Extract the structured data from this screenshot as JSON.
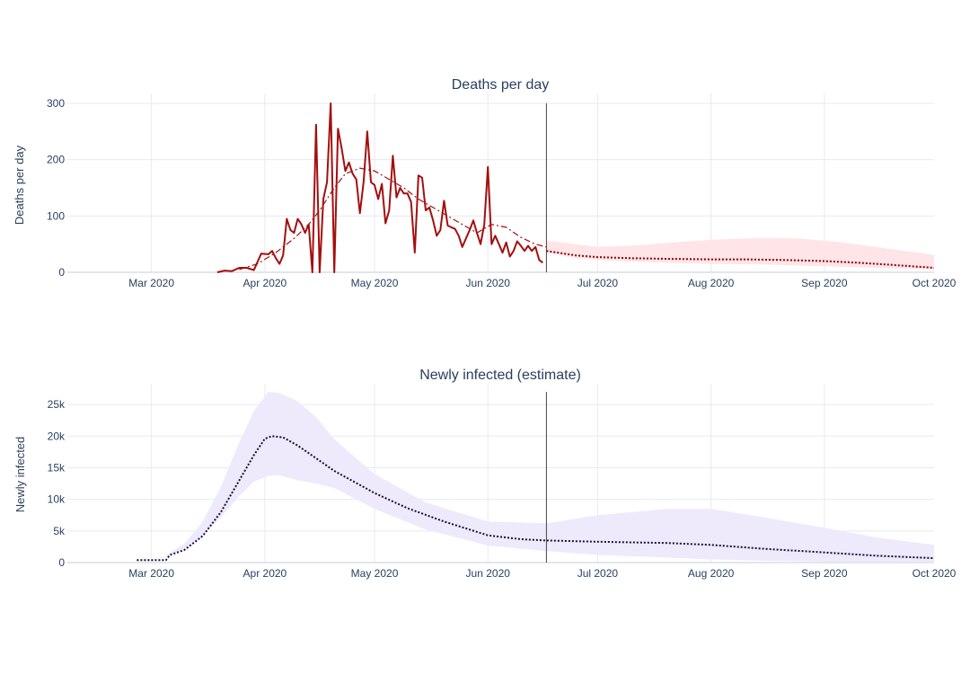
{
  "colors": {
    "deaths_line": "#a30f0f",
    "deaths_trend": "#a30f0f",
    "deaths_band": "#ffe4e8",
    "deaths_forecast": "#8b0000",
    "infected_band": "#eeeafc",
    "infected_line": "#1a0c3a",
    "grid": "#e6eaf0",
    "axis_text": "#2a3f5f",
    "divider": "#444444"
  },
  "chart_data": [
    {
      "type": "line",
      "title": "Deaths per day",
      "xlabel": "",
      "ylabel": "Deaths per day",
      "xlim": [
        "2020-02-07",
        "2020-10-01"
      ],
      "ylim": [
        0,
        300
      ],
      "y_ticks": [
        0,
        100,
        200,
        300
      ],
      "y_tick_labels": [
        "0",
        "100",
        "200",
        "300"
      ],
      "x_ticks": [
        "2020-03-01",
        "2020-04-01",
        "2020-05-01",
        "2020-06-01",
        "2020-07-01",
        "2020-08-01",
        "2020-09-01",
        "2020-10-01"
      ],
      "x_tick_labels": [
        "Mar 2020",
        "Apr 2020",
        "May 2020",
        "Jun 2020",
        "Jul 2020",
        "Aug 2020",
        "Sep 2020",
        "Oct 2020"
      ],
      "grid": true,
      "divider_date": "2020-06-17",
      "band": {
        "x": [
          "2020-06-17",
          "2020-06-25",
          "2020-07-01",
          "2020-07-10",
          "2020-07-20",
          "2020-08-01",
          "2020-08-15",
          "2020-08-25",
          "2020-09-05",
          "2020-09-15",
          "2020-09-25",
          "2020-10-01"
        ],
        "upper": [
          56,
          50,
          45,
          47,
          52,
          58,
          61,
          60,
          54,
          45,
          36,
          31
        ],
        "lower": [
          35,
          25,
          22,
          19,
          17,
          15,
          14,
          12,
          10,
          8,
          6,
          5
        ]
      },
      "series": [
        {
          "x": [
            "2020-03-19",
            "2020-03-21",
            "2020-03-23",
            "2020-03-25",
            "2020-03-27",
            "2020-03-29",
            "2020-03-31",
            "2020-04-02",
            "2020-04-03",
            "2020-04-04",
            "2020-04-05",
            "2020-04-06",
            "2020-04-07",
            "2020-04-08",
            "2020-04-09",
            "2020-04-10",
            "2020-04-11",
            "2020-04-12",
            "2020-04-13",
            "2020-04-14",
            "2020-04-15",
            "2020-04-16",
            "2020-04-17",
            "2020-04-18",
            "2020-04-19",
            "2020-04-20",
            "2020-04-21",
            "2020-04-22",
            "2020-04-23",
            "2020-04-24",
            "2020-04-25",
            "2020-04-26",
            "2020-04-27",
            "2020-04-28",
            "2020-04-29",
            "2020-04-30",
            "2020-05-01",
            "2020-05-02",
            "2020-05-03",
            "2020-05-04",
            "2020-05-05",
            "2020-05-06",
            "2020-05-07",
            "2020-05-08",
            "2020-05-09",
            "2020-05-10",
            "2020-05-11",
            "2020-05-12",
            "2020-05-13",
            "2020-05-14",
            "2020-05-15",
            "2020-05-16",
            "2020-05-17",
            "2020-05-18",
            "2020-05-19",
            "2020-05-20",
            "2020-05-21",
            "2020-05-22",
            "2020-05-23",
            "2020-05-24",
            "2020-05-25",
            "2020-05-26",
            "2020-05-27",
            "2020-05-28",
            "2020-05-29",
            "2020-05-30",
            "2020-05-31",
            "2020-06-01",
            "2020-06-02",
            "2020-06-03",
            "2020-06-04",
            "2020-06-05",
            "2020-06-06",
            "2020-06-07",
            "2020-06-08",
            "2020-06-09",
            "2020-06-10",
            "2020-06-11",
            "2020-06-12",
            "2020-06-13",
            "2020-06-14",
            "2020-06-15",
            "2020-06-16"
          ],
          "y": [
            0,
            3,
            2,
            8,
            8,
            4,
            33,
            32,
            38,
            25,
            15,
            30,
            95,
            75,
            70,
            95,
            85,
            70,
            85,
            0,
            262,
            0,
            130,
            160,
            300,
            0,
            255,
            220,
            180,
            195,
            175,
            165,
            105,
            160,
            250,
            160,
            155,
            130,
            157,
            87,
            110,
            207,
            133,
            150,
            140,
            140,
            125,
            35,
            172,
            168,
            110,
            115,
            92,
            65,
            75,
            127,
            83,
            80,
            77,
            65,
            45,
            60,
            75,
            92,
            70,
            50,
            85,
            187,
            50,
            65,
            50,
            35,
            53,
            28,
            38,
            55,
            47,
            38,
            47,
            38,
            45,
            22,
            17
          ]
        },
        {
          "x": [
            "2020-03-25",
            "2020-03-30",
            "2020-04-04",
            "2020-04-09",
            "2020-04-13",
            "2020-04-16",
            "2020-04-20",
            "2020-04-23",
            "2020-04-27",
            "2020-05-01",
            "2020-05-05",
            "2020-05-09",
            "2020-05-13",
            "2020-05-17",
            "2020-05-21",
            "2020-05-25",
            "2020-05-29",
            "2020-06-02",
            "2020-06-06",
            "2020-06-10",
            "2020-06-14",
            "2020-06-17"
          ],
          "y": [
            5,
            15,
            35,
            60,
            85,
            110,
            150,
            175,
            185,
            180,
            165,
            150,
            130,
            115,
            100,
            85,
            70,
            85,
            80,
            62,
            50,
            45
          ]
        },
        {
          "x": [
            "2020-06-17",
            "2020-06-25",
            "2020-07-01",
            "2020-07-10",
            "2020-07-20",
            "2020-08-01",
            "2020-08-10",
            "2020-08-20",
            "2020-09-01",
            "2020-09-10",
            "2020-09-20",
            "2020-10-01"
          ],
          "y": [
            38,
            30,
            27,
            25,
            24,
            23,
            23,
            22,
            20,
            17,
            13,
            8
          ]
        }
      ]
    },
    {
      "type": "line",
      "title": "Newly infected (estimate)",
      "xlabel": "",
      "ylabel": "Newly infected",
      "xlim": [
        "2020-02-07",
        "2020-10-01"
      ],
      "ylim": [
        0,
        27000
      ],
      "y_ticks": [
        0,
        5000,
        10000,
        15000,
        20000,
        25000
      ],
      "y_tick_labels": [
        "0",
        "5k",
        "10k",
        "15k",
        "20k",
        "25k"
      ],
      "x_ticks": [
        "2020-03-01",
        "2020-04-01",
        "2020-05-01",
        "2020-06-01",
        "2020-07-01",
        "2020-08-01",
        "2020-09-01",
        "2020-10-01"
      ],
      "x_tick_labels": [
        "Mar 2020",
        "Apr 2020",
        "May 2020",
        "Jun 2020",
        "Jul 2020",
        "Aug 2020",
        "Sep 2020",
        "Oct 2020"
      ],
      "grid": true,
      "divider_date": "2020-06-17",
      "band": {
        "x": [
          "2020-03-05",
          "2020-03-10",
          "2020-03-15",
          "2020-03-20",
          "2020-03-25",
          "2020-03-29",
          "2020-04-02",
          "2020-04-05",
          "2020-04-10",
          "2020-04-15",
          "2020-04-20",
          "2020-05-01",
          "2020-05-15",
          "2020-06-01",
          "2020-06-17",
          "2020-07-01",
          "2020-07-20",
          "2020-08-01",
          "2020-08-15",
          "2020-09-01",
          "2020-09-15",
          "2020-10-01"
        ],
        "upper": [
          1200,
          3000,
          6500,
          12000,
          19000,
          24000,
          27000,
          26800,
          25500,
          23000,
          19500,
          14000,
          9500,
          6500,
          6200,
          7500,
          8500,
          8500,
          7200,
          5500,
          4000,
          2800
        ],
        "lower": [
          1000,
          2200,
          4200,
          7200,
          10500,
          12800,
          13700,
          13800,
          13000,
          12500,
          11800,
          8500,
          5200,
          2700,
          1800,
          1200,
          800,
          500,
          300,
          150,
          80,
          40
        ]
      },
      "series": [
        {
          "x": [
            "2020-02-26",
            "2020-03-05",
            "2020-03-06",
            "2020-03-10",
            "2020-03-15",
            "2020-03-20",
            "2020-03-25",
            "2020-03-29",
            "2020-04-01",
            "2020-04-03",
            "2020-04-06",
            "2020-04-10",
            "2020-04-15",
            "2020-04-20",
            "2020-05-01",
            "2020-05-10",
            "2020-05-20",
            "2020-06-01",
            "2020-06-10",
            "2020-06-17",
            "2020-07-01",
            "2020-07-20",
            "2020-08-01",
            "2020-08-15",
            "2020-09-01",
            "2020-09-15",
            "2020-10-01"
          ],
          "y": [
            400,
            400,
            1200,
            2000,
            4200,
            8000,
            13000,
            17000,
            19600,
            20000,
            19800,
            18500,
            16500,
            14500,
            11000,
            8600,
            6500,
            4300,
            3700,
            3500,
            3300,
            3100,
            2800,
            2200,
            1600,
            1100,
            700
          ]
        }
      ]
    }
  ]
}
